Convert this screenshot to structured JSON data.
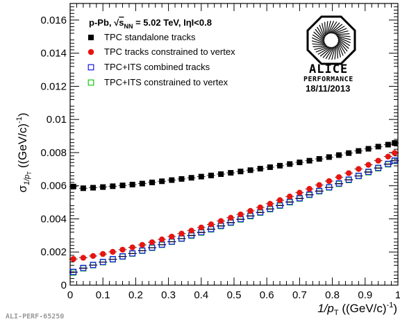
{
  "chart_data": {
    "type": "scatter",
    "header": {
      "system": "p-Pb, ",
      "sqrt": "s",
      "sub": "NN",
      "rest": " = 5.02 TeV, IηI<0.8"
    },
    "ylabel": {
      "sigma": "σ",
      "sub": "1/p",
      "subsub": "T",
      "unit": " ((GeV/c)",
      "exp": "-1",
      "close": ")"
    },
    "xlabel": {
      "main": "1/p",
      "sub": "T",
      "unit": " ((GeV/c)",
      "exp": "-1",
      "close": ")"
    },
    "xlim": [
      0,
      1
    ],
    "ylim": [
      0,
      0.017
    ],
    "x_ticks": [
      "0",
      "0.1",
      "0.2",
      "0.3",
      "0.4",
      "0.5",
      "0.6",
      "0.7",
      "0.8",
      "0.9",
      "1"
    ],
    "y_ticks": [
      "0",
      "0.002",
      "0.004",
      "0.006",
      "0.008",
      "0.01",
      "0.012",
      "0.014",
      "0.016"
    ],
    "x": [
      0.01,
      0.04,
      0.07,
      0.1,
      0.13,
      0.16,
      0.19,
      0.22,
      0.25,
      0.28,
      0.31,
      0.34,
      0.37,
      0.4,
      0.43,
      0.46,
      0.49,
      0.52,
      0.55,
      0.58,
      0.61,
      0.64,
      0.67,
      0.7,
      0.73,
      0.76,
      0.79,
      0.82,
      0.85,
      0.88,
      0.91,
      0.94,
      0.97,
      0.99
    ],
    "series": [
      {
        "name": "TPC standalone tracks",
        "marker": "square-filled",
        "color": "#000000",
        "values": [
          0.00595,
          0.00585,
          0.00588,
          0.00592,
          0.00597,
          0.00602,
          0.00607,
          0.00613,
          0.0062,
          0.00627,
          0.00634,
          0.00641,
          0.00648,
          0.00655,
          0.00662,
          0.0067,
          0.00678,
          0.00686,
          0.00694,
          0.00703,
          0.00712,
          0.00721,
          0.00731,
          0.00741,
          0.00751,
          0.00762,
          0.00773,
          0.00785,
          0.00797,
          0.0081,
          0.00823,
          0.00836,
          0.00848,
          0.00858
        ]
      },
      {
        "name": "TPC tracks constrained to vertex",
        "marker": "circle-filled",
        "color": "#e8140f",
        "values": [
          0.00158,
          0.00165,
          0.00176,
          0.00188,
          0.00201,
          0.00214,
          0.00228,
          0.00243,
          0.00259,
          0.00276,
          0.00293,
          0.00311,
          0.00329,
          0.00348,
          0.00367,
          0.00387,
          0.00407,
          0.00427,
          0.00448,
          0.00469,
          0.00491,
          0.00513,
          0.00535,
          0.00558,
          0.00581,
          0.00604,
          0.00628,
          0.00652,
          0.00676,
          0.00701,
          0.00726,
          0.00751,
          0.00776,
          0.00798
        ]
      },
      {
        "name": "TPC+ITS combined tracks",
        "marker": "square-open",
        "color": "#1414e8",
        "values": [
          0.0008,
          0.00104,
          0.00122,
          0.0014,
          0.00157,
          0.00174,
          0.00192,
          0.00209,
          0.00227,
          0.00245,
          0.00263,
          0.00282,
          0.00301,
          0.0032,
          0.00339,
          0.00359,
          0.00379,
          0.00399,
          0.00419,
          0.0044,
          0.00461,
          0.00482,
          0.00503,
          0.00525,
          0.00547,
          0.00569,
          0.00591,
          0.00614,
          0.00637,
          0.0066,
          0.00684,
          0.00708,
          0.00732,
          0.00752
        ]
      },
      {
        "name": "TPC+ITS constrained to vertex",
        "marker": "square-open",
        "color": "#14c814",
        "values": [
          0.00076,
          0.00101,
          0.0012,
          0.00138,
          0.00155,
          0.00172,
          0.0019,
          0.00207,
          0.00225,
          0.00243,
          0.00261,
          0.0028,
          0.00298,
          0.00317,
          0.00336,
          0.00356,
          0.00376,
          0.00396,
          0.00416,
          0.00437,
          0.00458,
          0.00479,
          0.005,
          0.00522,
          0.00544,
          0.00566,
          0.00589,
          0.00611,
          0.00634,
          0.00658,
          0.00681,
          0.00705,
          0.00729,
          0.0075
        ]
      }
    ]
  },
  "logo": {
    "name": "ALICE",
    "subtitle": "PERFORMANCE",
    "date": "18/11/2013"
  },
  "figure_id": "ALI-PERF-65250"
}
